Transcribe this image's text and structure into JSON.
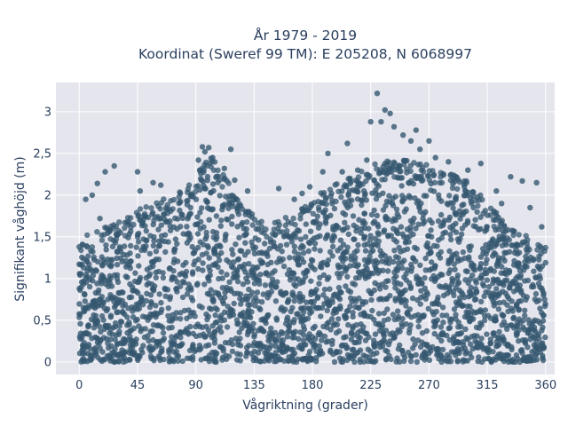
{
  "chart_data": {
    "type": "scatter",
    "title_line1": "År 1979 - 2019",
    "title_line2": "Koordinat (Sweref 99 TM): E 205208, N 6068997",
    "xlabel": "Vågriktning (grader)",
    "ylabel": "Signifikant våghöjd (m)",
    "xlim": [
      -18,
      367
    ],
    "ylim": [
      -0.15,
      3.35
    ],
    "x_ticks": [
      0,
      45,
      90,
      135,
      180,
      225,
      270,
      315,
      360
    ],
    "x_tick_labels": [
      "0",
      "45",
      "90",
      "135",
      "180",
      "225",
      "270",
      "315",
      "360"
    ],
    "y_ticks": [
      0,
      0.5,
      1,
      1.5,
      2,
      2.5,
      3
    ],
    "y_tick_labels": [
      "0",
      "0,5",
      "1",
      "1,5",
      "2",
      "2,5",
      "3"
    ],
    "grid": true,
    "marker_color": "#34576f",
    "background_color": "#e5e5ee",
    "envelope": [
      {
        "x": 0,
        "y": 1.3
      },
      {
        "x": 10,
        "y": 1.35
      },
      {
        "x": 20,
        "y": 1.4
      },
      {
        "x": 30,
        "y": 1.45
      },
      {
        "x": 45,
        "y": 1.6
      },
      {
        "x": 60,
        "y": 1.7
      },
      {
        "x": 75,
        "y": 1.8
      },
      {
        "x": 90,
        "y": 2.0
      },
      {
        "x": 100,
        "y": 2.3
      },
      {
        "x": 110,
        "y": 2.1
      },
      {
        "x": 120,
        "y": 1.8
      },
      {
        "x": 135,
        "y": 1.55
      },
      {
        "x": 150,
        "y": 1.45
      },
      {
        "x": 165,
        "y": 1.55
      },
      {
        "x": 180,
        "y": 1.75
      },
      {
        "x": 195,
        "y": 1.9
      },
      {
        "x": 210,
        "y": 2.0
      },
      {
        "x": 225,
        "y": 2.15
      },
      {
        "x": 240,
        "y": 2.2
      },
      {
        "x": 255,
        "y": 2.2
      },
      {
        "x": 270,
        "y": 2.15
      },
      {
        "x": 285,
        "y": 2.05
      },
      {
        "x": 300,
        "y": 1.95
      },
      {
        "x": 315,
        "y": 1.7
      },
      {
        "x": 330,
        "y": 1.45
      },
      {
        "x": 345,
        "y": 1.3
      },
      {
        "x": 360,
        "y": 1.2
      }
    ],
    "outliers": [
      {
        "x": 0,
        "y": 1.38
      },
      {
        "x": 5,
        "y": 1.95
      },
      {
        "x": 10,
        "y": 2.0
      },
      {
        "x": 14,
        "y": 2.14
      },
      {
        "x": 16,
        "y": 1.72
      },
      {
        "x": 20,
        "y": 2.28
      },
      {
        "x": 27,
        "y": 2.35
      },
      {
        "x": 45,
        "y": 2.28
      },
      {
        "x": 47,
        "y": 2.05
      },
      {
        "x": 57,
        "y": 2.15
      },
      {
        "x": 63,
        "y": 2.12
      },
      {
        "x": 78,
        "y": 2.02
      },
      {
        "x": 92,
        "y": 2.42
      },
      {
        "x": 95,
        "y": 2.58
      },
      {
        "x": 97,
        "y": 2.52
      },
      {
        "x": 100,
        "y": 2.57
      },
      {
        "x": 103,
        "y": 2.45
      },
      {
        "x": 112,
        "y": 2.32
      },
      {
        "x": 117,
        "y": 2.55
      },
      {
        "x": 120,
        "y": 2.18
      },
      {
        "x": 130,
        "y": 2.05
      },
      {
        "x": 154,
        "y": 2.08
      },
      {
        "x": 166,
        "y": 1.95
      },
      {
        "x": 172,
        "y": 2.02
      },
      {
        "x": 178,
        "y": 2.1
      },
      {
        "x": 188,
        "y": 2.28
      },
      {
        "x": 192,
        "y": 2.5
      },
      {
        "x": 203,
        "y": 2.28
      },
      {
        "x": 207,
        "y": 2.62
      },
      {
        "x": 215,
        "y": 2.3
      },
      {
        "x": 222,
        "y": 2.42
      },
      {
        "x": 225,
        "y": 2.88
      },
      {
        "x": 230,
        "y": 3.22
      },
      {
        "x": 233,
        "y": 2.88
      },
      {
        "x": 236,
        "y": 3.02
      },
      {
        "x": 240,
        "y": 2.98
      },
      {
        "x": 243,
        "y": 2.82
      },
      {
        "x": 250,
        "y": 2.72
      },
      {
        "x": 256,
        "y": 2.65
      },
      {
        "x": 260,
        "y": 2.78
      },
      {
        "x": 263,
        "y": 2.55
      },
      {
        "x": 270,
        "y": 2.65
      },
      {
        "x": 275,
        "y": 2.45
      },
      {
        "x": 285,
        "y": 2.4
      },
      {
        "x": 300,
        "y": 2.3
      },
      {
        "x": 310,
        "y": 2.38
      },
      {
        "x": 322,
        "y": 2.05
      },
      {
        "x": 326,
        "y": 1.9
      },
      {
        "x": 333,
        "y": 2.22
      },
      {
        "x": 342,
        "y": 2.17
      },
      {
        "x": 348,
        "y": 1.85
      },
      {
        "x": 353,
        "y": 2.15
      },
      {
        "x": 357,
        "y": 1.62
      }
    ]
  }
}
